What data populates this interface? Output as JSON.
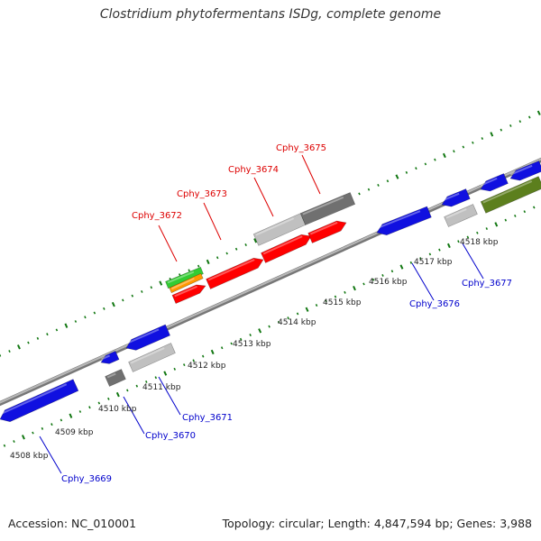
{
  "title": "Clostridium phytofermentans ISDg, complete genome",
  "accession_text": "Accession: NC_010001",
  "topology_text": "Topology: circular; Length: 4,847,594 bp; Genes: 3,988",
  "colors": {
    "forward_highlight": "#ff0000",
    "reverse_gene": "#1010e0",
    "pseudo_light": "#c0c0c0",
    "pseudo_dark": "#707070",
    "other_gene": "#5c7f1d",
    "rrna": "#33cc33",
    "trna": "#ff9900",
    "tick_mark": "#117711",
    "backbone": "#9a9a9a",
    "label_red": "#dd0000",
    "label_blue": "#0000cc"
  },
  "scale_labels": [
    "4508 kbp",
    "4509 kbp",
    "4510 kbp",
    "4511 kbp",
    "4512 kbp",
    "4513 kbp",
    "4514 kbp",
    "4515 kbp",
    "4516 kbp",
    "4517 kbp",
    "4518 kbp"
  ],
  "gene_labels_forward": [
    "Cphy_3672",
    "Cphy_3673",
    "Cphy_3674",
    "Cphy_3675"
  ],
  "gene_labels_reverse": [
    "Cphy_3669",
    "Cphy_3670",
    "Cphy_3671",
    "Cphy_3676",
    "Cphy_3677"
  ]
}
